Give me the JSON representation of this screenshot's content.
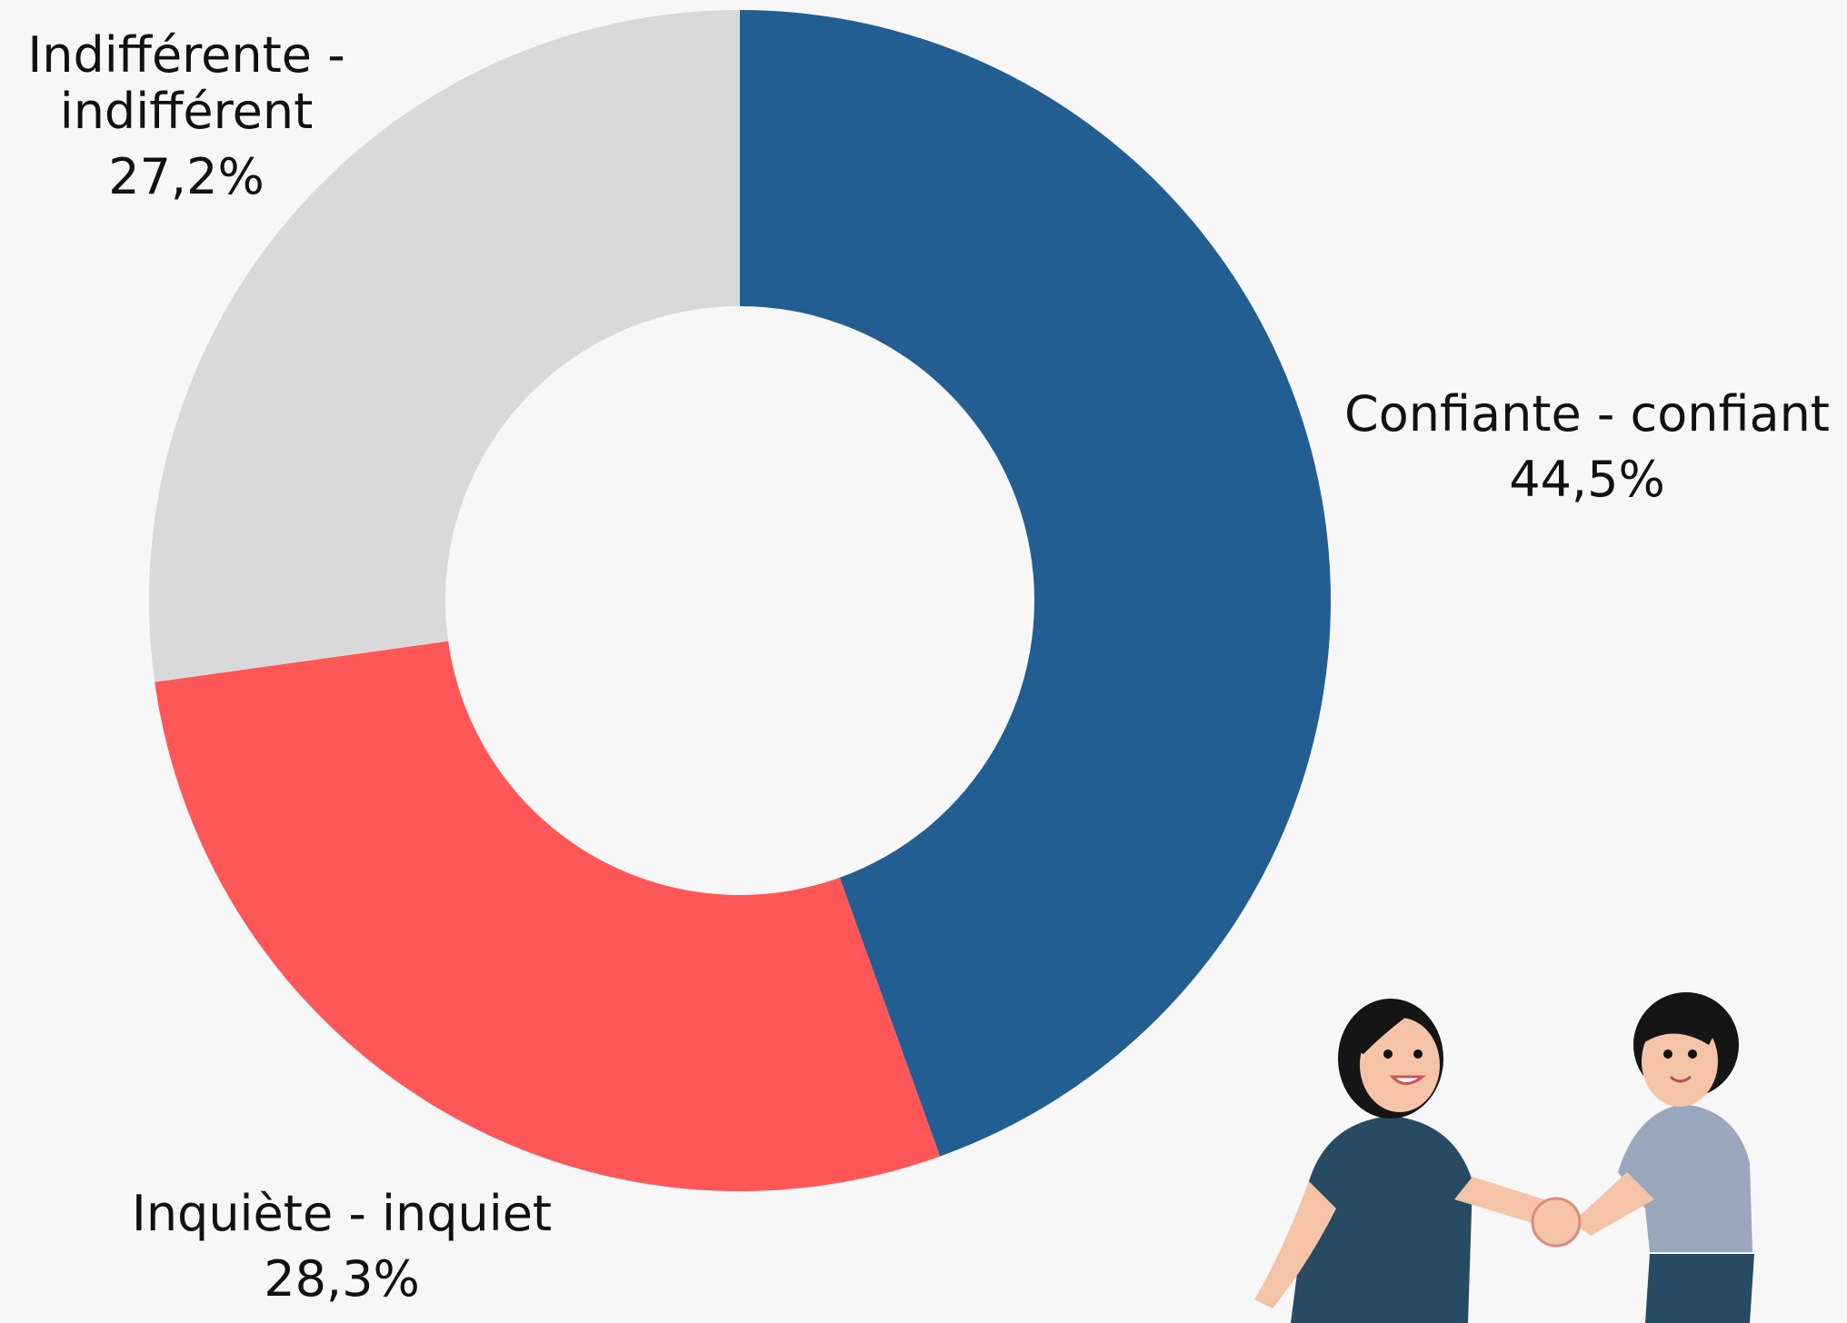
{
  "chart_data": {
    "type": "donut",
    "categories": [
      "Confiante - confiant",
      "Inquiète - inquiet",
      "Indifférente - indifférent"
    ],
    "values": [
      44.5,
      28.3,
      27.2
    ],
    "value_labels": [
      "44,5%",
      "28,3%",
      "27,2%"
    ],
    "colors": [
      "#225e92",
      "#ff5757",
      "#d9d9d9"
    ]
  }
}
